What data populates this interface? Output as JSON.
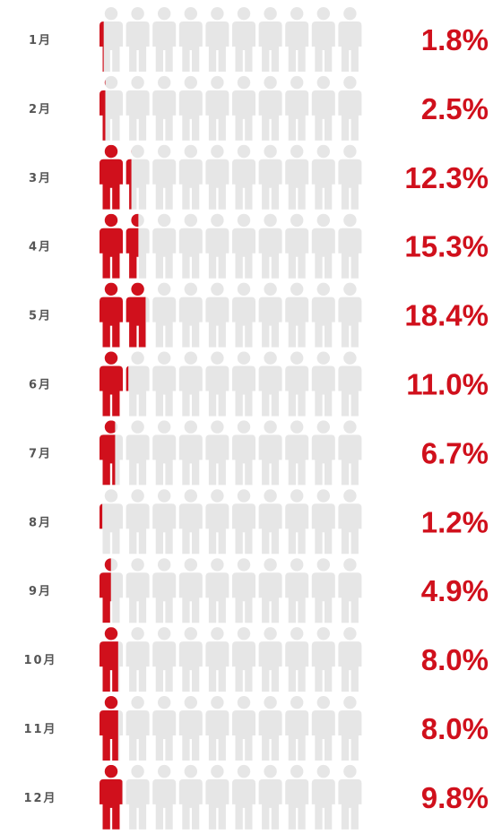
{
  "chart_data": {
    "type": "pictogram",
    "icons_per_row": 10,
    "value_per_icon": 10,
    "unit": "%",
    "colors": {
      "filled": "#d0101c",
      "empty": "#e6e6e6",
      "label": "#555555",
      "value": "#d0101c"
    },
    "rows": [
      {
        "month": "1月",
        "value": 1.8,
        "label": "1.8%"
      },
      {
        "month": "2月",
        "value": 2.5,
        "label": "2.5%"
      },
      {
        "month": "3月",
        "value": 12.3,
        "label": "12.3%"
      },
      {
        "month": "4月",
        "value": 15.3,
        "label": "15.3%"
      },
      {
        "month": "5月",
        "value": 18.4,
        "label": "18.4%"
      },
      {
        "month": "6月",
        "value": 11.0,
        "label": "11.0%"
      },
      {
        "month": "7月",
        "value": 6.7,
        "label": "6.7%"
      },
      {
        "month": "8月",
        "value": 1.2,
        "label": "1.2%"
      },
      {
        "month": "9月",
        "value": 4.9,
        "label": "4.9%"
      },
      {
        "month": "10月",
        "value": 8.0,
        "label": "8.0%"
      },
      {
        "month": "11月",
        "value": 8.0,
        "label": "8.0%"
      },
      {
        "month": "12月",
        "value": 9.8,
        "label": "9.8%"
      }
    ]
  }
}
